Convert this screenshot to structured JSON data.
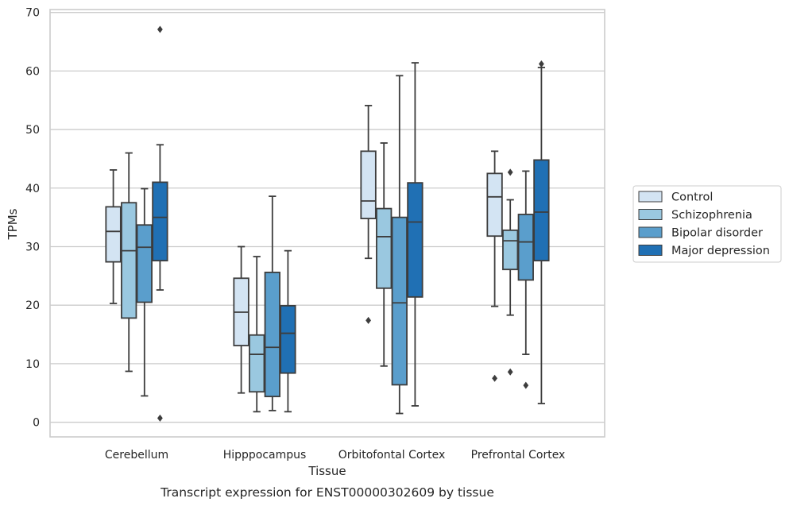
{
  "caption": "Transcript expression for ENST00000302609 by tissue",
  "chart_data": {
    "type": "box",
    "title": "",
    "xlabel": "Tissue",
    "ylabel": "TPMs",
    "ylim": [
      -2.5,
      70.5
    ],
    "yticks": [
      0,
      10,
      20,
      30,
      40,
      50,
      60,
      70
    ],
    "grid": "horizontal",
    "legend_position": "right",
    "categories": [
      "Cerebellum",
      "Hipppocampus",
      "Orbitofontal Cortex",
      "Prefrontal Cortex"
    ],
    "series": [
      {
        "name": "Control",
        "color": "#d3e4f3",
        "boxes": [
          {
            "whisker_low": 20.3,
            "q1": 27.4,
            "median": 32.6,
            "q3": 36.8,
            "whisker_high": 43.1,
            "outliers": []
          },
          {
            "whisker_low": 5.0,
            "q1": 13.1,
            "median": 18.8,
            "q3": 24.6,
            "whisker_high": 30.0,
            "outliers": []
          },
          {
            "whisker_low": 28.0,
            "q1": 34.8,
            "median": 37.8,
            "q3": 46.3,
            "whisker_high": 54.1,
            "outliers": [
              17.4
            ]
          },
          {
            "whisker_low": 19.8,
            "q1": 31.8,
            "median": 38.5,
            "q3": 42.5,
            "whisker_high": 46.3,
            "outliers": [
              7.5
            ]
          }
        ]
      },
      {
        "name": "Schizophrenia",
        "color": "#9ac8e0",
        "boxes": [
          {
            "whisker_low": 8.7,
            "q1": 17.8,
            "median": 29.3,
            "q3": 37.5,
            "whisker_high": 46.0,
            "outliers": []
          },
          {
            "whisker_low": 1.8,
            "q1": 5.2,
            "median": 11.6,
            "q3": 14.9,
            "whisker_high": 28.3,
            "outliers": []
          },
          {
            "whisker_low": 9.6,
            "q1": 22.9,
            "median": 31.7,
            "q3": 36.5,
            "whisker_high": 47.7,
            "outliers": []
          },
          {
            "whisker_low": 18.3,
            "q1": 26.1,
            "median": 31.0,
            "q3": 32.8,
            "whisker_high": 38.0,
            "outliers": [
              42.7,
              8.6
            ]
          }
        ]
      },
      {
        "name": "Bipolar disorder",
        "color": "#5a9ecc",
        "boxes": [
          {
            "whisker_low": 4.5,
            "q1": 20.5,
            "median": 29.9,
            "q3": 33.7,
            "whisker_high": 39.9,
            "outliers": []
          },
          {
            "whisker_low": 2.0,
            "q1": 4.4,
            "median": 12.8,
            "q3": 25.6,
            "whisker_high": 38.6,
            "outliers": []
          },
          {
            "whisker_low": 1.5,
            "q1": 6.4,
            "median": 20.4,
            "q3": 35.0,
            "whisker_high": 59.2,
            "outliers": []
          },
          {
            "whisker_low": 11.6,
            "q1": 24.3,
            "median": 30.8,
            "q3": 35.5,
            "whisker_high": 42.9,
            "outliers": [
              6.3
            ]
          }
        ]
      },
      {
        "name": "Major depression",
        "color": "#2070b4",
        "boxes": [
          {
            "whisker_low": 22.6,
            "q1": 27.6,
            "median": 35.0,
            "q3": 41.0,
            "whisker_high": 47.4,
            "outliers": [
              67.1,
              0.7
            ]
          },
          {
            "whisker_low": 1.8,
            "q1": 8.4,
            "median": 15.2,
            "q3": 19.9,
            "whisker_high": 29.3,
            "outliers": []
          },
          {
            "whisker_low": 2.8,
            "q1": 21.4,
            "median": 34.2,
            "q3": 40.9,
            "whisker_high": 61.4,
            "outliers": []
          },
          {
            "whisker_low": 3.2,
            "q1": 27.6,
            "median": 35.9,
            "q3": 44.8,
            "whisker_high": 60.6,
            "outliers": [
              61.2
            ]
          }
        ]
      }
    ]
  }
}
